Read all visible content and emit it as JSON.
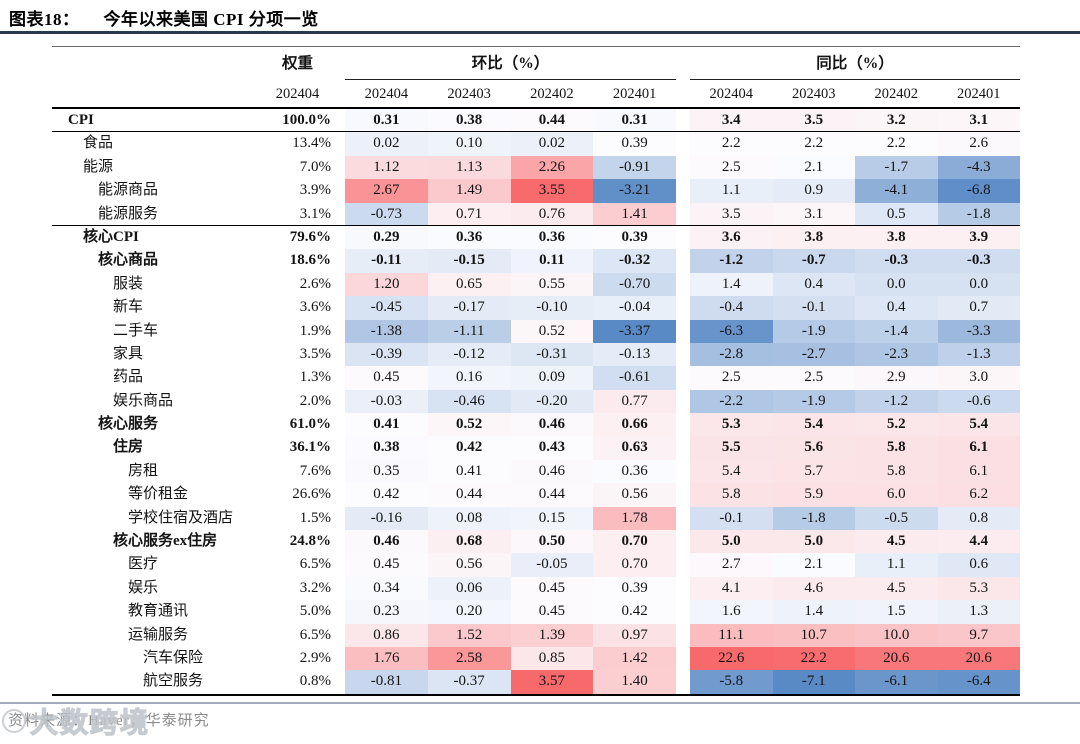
{
  "figure": {
    "tag": "图表18：",
    "title": "今年以来美国 CPI 分项一览"
  },
  "footer": {
    "source": "资料来源：Haver，华泰研究",
    "watermark_text": "大数跨境"
  },
  "colors": {
    "heat_max_red": "#F8696B",
    "heat_mid_white": "#FCFCFF",
    "heat_min_blue": "#5A8AC6",
    "title_rule": "#2a3850",
    "footer_rule": "#9fadbd"
  },
  "chart_data": {
    "type": "table",
    "title": "图表18： 今年以来美国 CPI 分项一览",
    "heatmap": "excel-3-color-scale per block: min=blue #5A8AC6, median=white #FCFCFF, max=red #F8696B",
    "weight_label": "权重",
    "mom_label": "环比（%）",
    "yoy_label": "同比（%）",
    "weight_period": "202404",
    "mom_periods": [
      "202404",
      "202403",
      "202402",
      "202401"
    ],
    "yoy_periods": [
      "202404",
      "202403",
      "202402",
      "202401"
    ],
    "rows": [
      {
        "label": "CPI",
        "indent": 0,
        "bold": true,
        "rule_below": true,
        "weight": "100.0%",
        "mom": [
          "0.31",
          "0.38",
          "0.44",
          "0.31"
        ],
        "yoy": [
          "3.4",
          "3.5",
          "3.2",
          "3.1"
        ]
      },
      {
        "label": "食品",
        "indent": 1,
        "bold": false,
        "rule_below": false,
        "weight": "13.4%",
        "mom": [
          "0.02",
          "0.10",
          "0.02",
          "0.39"
        ],
        "yoy": [
          "2.2",
          "2.2",
          "2.2",
          "2.6"
        ]
      },
      {
        "label": "能源",
        "indent": 1,
        "bold": false,
        "rule_below": false,
        "weight": "7.0%",
        "mom": [
          "1.12",
          "1.13",
          "2.26",
          "-0.91"
        ],
        "yoy": [
          "2.5",
          "2.1",
          "-1.7",
          "-4.3"
        ]
      },
      {
        "label": "能源商品",
        "indent": 2,
        "bold": false,
        "rule_below": false,
        "weight": "3.9%",
        "mom": [
          "2.67",
          "1.49",
          "3.55",
          "-3.21"
        ],
        "yoy": [
          "1.1",
          "0.9",
          "-4.1",
          "-6.8"
        ]
      },
      {
        "label": "能源服务",
        "indent": 2,
        "bold": false,
        "rule_below": true,
        "weight": "3.1%",
        "mom": [
          "-0.73",
          "0.71",
          "0.76",
          "1.41"
        ],
        "yoy": [
          "3.5",
          "3.1",
          "0.5",
          "-1.8"
        ]
      },
      {
        "label": "核心CPI",
        "indent": 1,
        "bold": true,
        "rule_below": false,
        "weight": "79.6%",
        "mom": [
          "0.29",
          "0.36",
          "0.36",
          "0.39"
        ],
        "yoy": [
          "3.6",
          "3.8",
          "3.8",
          "3.9"
        ]
      },
      {
        "label": "核心商品",
        "indent": 2,
        "bold": true,
        "rule_below": false,
        "weight": "18.6%",
        "mom": [
          "-0.11",
          "-0.15",
          "0.11",
          "-0.32"
        ],
        "yoy": [
          "-1.2",
          "-0.7",
          "-0.3",
          "-0.3"
        ]
      },
      {
        "label": "服装",
        "indent": 3,
        "bold": false,
        "rule_below": false,
        "weight": "2.6%",
        "mom": [
          "1.20",
          "0.65",
          "0.55",
          "-0.70"
        ],
        "yoy": [
          "1.4",
          "0.4",
          "0.0",
          "0.0"
        ]
      },
      {
        "label": "新车",
        "indent": 3,
        "bold": false,
        "rule_below": false,
        "weight": "3.6%",
        "mom": [
          "-0.45",
          "-0.17",
          "-0.10",
          "-0.04"
        ],
        "yoy": [
          "-0.4",
          "-0.1",
          "0.4",
          "0.7"
        ]
      },
      {
        "label": "二手车",
        "indent": 3,
        "bold": false,
        "rule_below": false,
        "weight": "1.9%",
        "mom": [
          "-1.38",
          "-1.11",
          "0.52",
          "-3.37"
        ],
        "yoy": [
          "-6.3",
          "-1.9",
          "-1.4",
          "-3.3"
        ]
      },
      {
        "label": "家具",
        "indent": 3,
        "bold": false,
        "rule_below": false,
        "weight": "3.5%",
        "mom": [
          "-0.39",
          "-0.12",
          "-0.31",
          "-0.13"
        ],
        "yoy": [
          "-2.8",
          "-2.7",
          "-2.3",
          "-1.3"
        ]
      },
      {
        "label": "药品",
        "indent": 3,
        "bold": false,
        "rule_below": false,
        "weight": "1.3%",
        "mom": [
          "0.45",
          "0.16",
          "0.09",
          "-0.61"
        ],
        "yoy": [
          "2.5",
          "2.5",
          "2.9",
          "3.0"
        ]
      },
      {
        "label": "娱乐商品",
        "indent": 3,
        "bold": false,
        "rule_below": false,
        "weight": "2.0%",
        "mom": [
          "-0.03",
          "-0.46",
          "-0.20",
          "0.77"
        ],
        "yoy": [
          "-2.2",
          "-1.9",
          "-1.2",
          "-0.6"
        ]
      },
      {
        "label": "核心服务",
        "indent": 2,
        "bold": true,
        "rule_below": false,
        "weight": "61.0%",
        "mom": [
          "0.41",
          "0.52",
          "0.46",
          "0.66"
        ],
        "yoy": [
          "5.3",
          "5.4",
          "5.2",
          "5.4"
        ]
      },
      {
        "label": "住房",
        "indent": 3,
        "bold": true,
        "rule_below": false,
        "weight": "36.1%",
        "mom": [
          "0.38",
          "0.42",
          "0.43",
          "0.63"
        ],
        "yoy": [
          "5.5",
          "5.6",
          "5.8",
          "6.1"
        ]
      },
      {
        "label": "房租",
        "indent": 4,
        "bold": false,
        "rule_below": false,
        "weight": "7.6%",
        "mom": [
          "0.35",
          "0.41",
          "0.46",
          "0.36"
        ],
        "yoy": [
          "5.4",
          "5.7",
          "5.8",
          "6.1"
        ]
      },
      {
        "label": "等价租金",
        "indent": 4,
        "bold": false,
        "rule_below": false,
        "weight": "26.6%",
        "mom": [
          "0.42",
          "0.44",
          "0.44",
          "0.56"
        ],
        "yoy": [
          "5.8",
          "5.9",
          "6.0",
          "6.2"
        ]
      },
      {
        "label": "学校住宿及酒店",
        "indent": 4,
        "bold": false,
        "rule_below": false,
        "weight": "1.5%",
        "mom": [
          "-0.16",
          "0.08",
          "0.15",
          "1.78"
        ],
        "yoy": [
          "-0.1",
          "-1.8",
          "-0.5",
          "0.8"
        ]
      },
      {
        "label": "核心服务ex住房",
        "indent": 3,
        "bold": true,
        "rule_below": false,
        "weight": "24.8%",
        "mom": [
          "0.46",
          "0.68",
          "0.50",
          "0.70"
        ],
        "yoy": [
          "5.0",
          "5.0",
          "4.5",
          "4.4"
        ]
      },
      {
        "label": "医疗",
        "indent": 4,
        "bold": false,
        "rule_below": false,
        "weight": "6.5%",
        "mom": [
          "0.45",
          "0.56",
          "-0.05",
          "0.70"
        ],
        "yoy": [
          "2.7",
          "2.1",
          "1.1",
          "0.6"
        ]
      },
      {
        "label": "娱乐",
        "indent": 4,
        "bold": false,
        "rule_below": false,
        "weight": "3.2%",
        "mom": [
          "0.34",
          "0.06",
          "0.45",
          "0.39"
        ],
        "yoy": [
          "4.1",
          "4.6",
          "4.5",
          "5.3"
        ]
      },
      {
        "label": "教育通讯",
        "indent": 4,
        "bold": false,
        "rule_below": false,
        "weight": "5.0%",
        "mom": [
          "0.23",
          "0.20",
          "0.45",
          "0.42"
        ],
        "yoy": [
          "1.6",
          "1.4",
          "1.5",
          "1.3"
        ]
      },
      {
        "label": "运输服务",
        "indent": 4,
        "bold": false,
        "rule_below": false,
        "weight": "6.5%",
        "mom": [
          "0.86",
          "1.52",
          "1.39",
          "0.97"
        ],
        "yoy": [
          "11.1",
          "10.7",
          "10.0",
          "9.7"
        ]
      },
      {
        "label": "汽车保险",
        "indent": 5,
        "bold": false,
        "rule_below": false,
        "weight": "2.9%",
        "mom": [
          "1.76",
          "2.58",
          "0.85",
          "1.42"
        ],
        "yoy": [
          "22.6",
          "22.2",
          "20.6",
          "20.6"
        ]
      },
      {
        "label": "航空服务",
        "indent": 5,
        "bold": false,
        "rule_below": false,
        "weight": "0.8%",
        "mom": [
          "-0.81",
          "-0.37",
          "3.57",
          "1.40"
        ],
        "yoy": [
          "-5.8",
          "-7.1",
          "-6.1",
          "-6.4"
        ]
      }
    ]
  }
}
